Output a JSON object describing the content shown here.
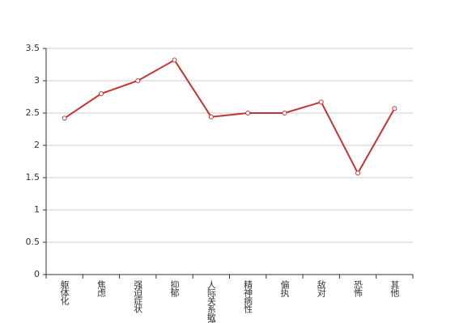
{
  "chart_data": {
    "type": "line",
    "categories": [
      "躯体化",
      "焦虑",
      "强迫症状",
      "抑郁",
      "人际关系敏感",
      "精神病性",
      "偏执",
      "敌对",
      "恐怖",
      "其他"
    ],
    "series": [
      {
        "color": "#c23531",
        "values": [
          2.42,
          2.8,
          3.0,
          3.32,
          2.44,
          2.5,
          2.5,
          2.67,
          1.57,
          2.57
        ]
      }
    ],
    "ylim": [
      0,
      3.5
    ],
    "yticks": [
      0,
      0.5,
      1,
      1.5,
      2,
      2.5,
      3,
      3.5
    ],
    "grid": true
  }
}
